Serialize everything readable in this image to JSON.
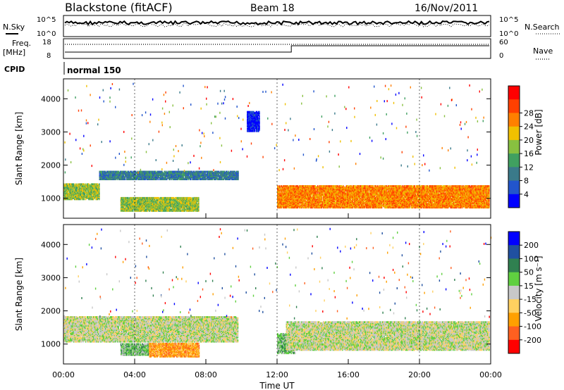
{
  "header": {
    "station": "Blackstone (fitACF)",
    "beam": "Beam 18",
    "date": "16/Nov/2011"
  },
  "strip": {
    "nsky_label": "N.Sky",
    "nsky_ticks": [
      "10^5",
      "10^0"
    ],
    "nsearch_label": "N.Search",
    "nsearch_ticks": [
      "10^5",
      "10^0"
    ],
    "freq_label": "Freq.",
    "freq_unit": "[MHz]",
    "freq_ticks": [
      "18",
      "8"
    ],
    "nave_label": "Nave",
    "nave_ticks": [
      "60",
      "0"
    ],
    "cpid_label": "CPID",
    "cpid_value": "normal 150"
  },
  "colors": {
    "power": [
      "#0000ff",
      "#2255cc",
      "#3a7a8a",
      "#40a060",
      "#88c040",
      "#f0c000",
      "#ff8000",
      "#ff4000",
      "#ff0000"
    ],
    "velocity": [
      "#ff0000",
      "#ff6020",
      "#ffa000",
      "#ffd060",
      "#c8c8c8",
      "#60d040",
      "#308050",
      "#2050a0",
      "#0000ff"
    ],
    "grey": "#c8c8c8"
  },
  "chart_data": [
    {
      "type": "heatmap",
      "name": "power",
      "ylabel": "Slant Range [km]",
      "y_ticks": [
        1000,
        2000,
        3000,
        4000
      ],
      "ylim": [
        400,
        4600
      ],
      "xlim": [
        0,
        24
      ],
      "colorbar_label": "Power [dB]",
      "colorbar_ticks": [
        "4",
        "8",
        "12",
        "16",
        "20",
        "24",
        "28"
      ],
      "bands": [
        {
          "x": [
            0.0,
            2.0
          ],
          "range": [
            950,
            1400
          ],
          "level": 4
        },
        {
          "x": [
            2.0,
            9.8
          ],
          "range": [
            1550,
            1800
          ],
          "level": 2
        },
        {
          "x": [
            3.2,
            7.6
          ],
          "range": [
            600,
            1000
          ],
          "level": 4
        },
        {
          "x": [
            10.3,
            11.0
          ],
          "range": [
            3000,
            3600
          ],
          "level": 0
        },
        {
          "x": [
            12.0,
            23.9
          ],
          "range": [
            700,
            1350
          ],
          "level": 6
        }
      ]
    },
    {
      "type": "heatmap",
      "name": "velocity",
      "ylabel": "Slant Range [km]",
      "y_ticks": [
        1000,
        2000,
        3000,
        4000
      ],
      "ylim": [
        400,
        4600
      ],
      "xlim": [
        0,
        24
      ],
      "colorbar_label": "Velocity [m s⁻¹]",
      "colorbar_ticks": [
        "200",
        "100",
        "50",
        "15",
        "-15",
        "-50",
        "-100",
        "-200"
      ],
      "bands": [
        {
          "x": [
            0.0,
            9.8
          ],
          "range": [
            1050,
            1800
          ],
          "level": 4
        },
        {
          "x": [
            3.2,
            4.8
          ],
          "range": [
            650,
            1000
          ],
          "level": 5
        },
        {
          "x": [
            4.8,
            7.6
          ],
          "range": [
            600,
            1000
          ],
          "level": 2
        },
        {
          "x": [
            12.0,
            13.0
          ],
          "range": [
            700,
            1300
          ],
          "level": 5
        },
        {
          "x": [
            12.5,
            23.9
          ],
          "range": [
            800,
            1650
          ],
          "level": 4
        }
      ]
    }
  ],
  "x_axis": {
    "ticks": [
      "00:00",
      "04:00",
      "08:00",
      "12:00",
      "16:00",
      "20:00",
      "00:00"
    ],
    "label": "Time UT"
  }
}
